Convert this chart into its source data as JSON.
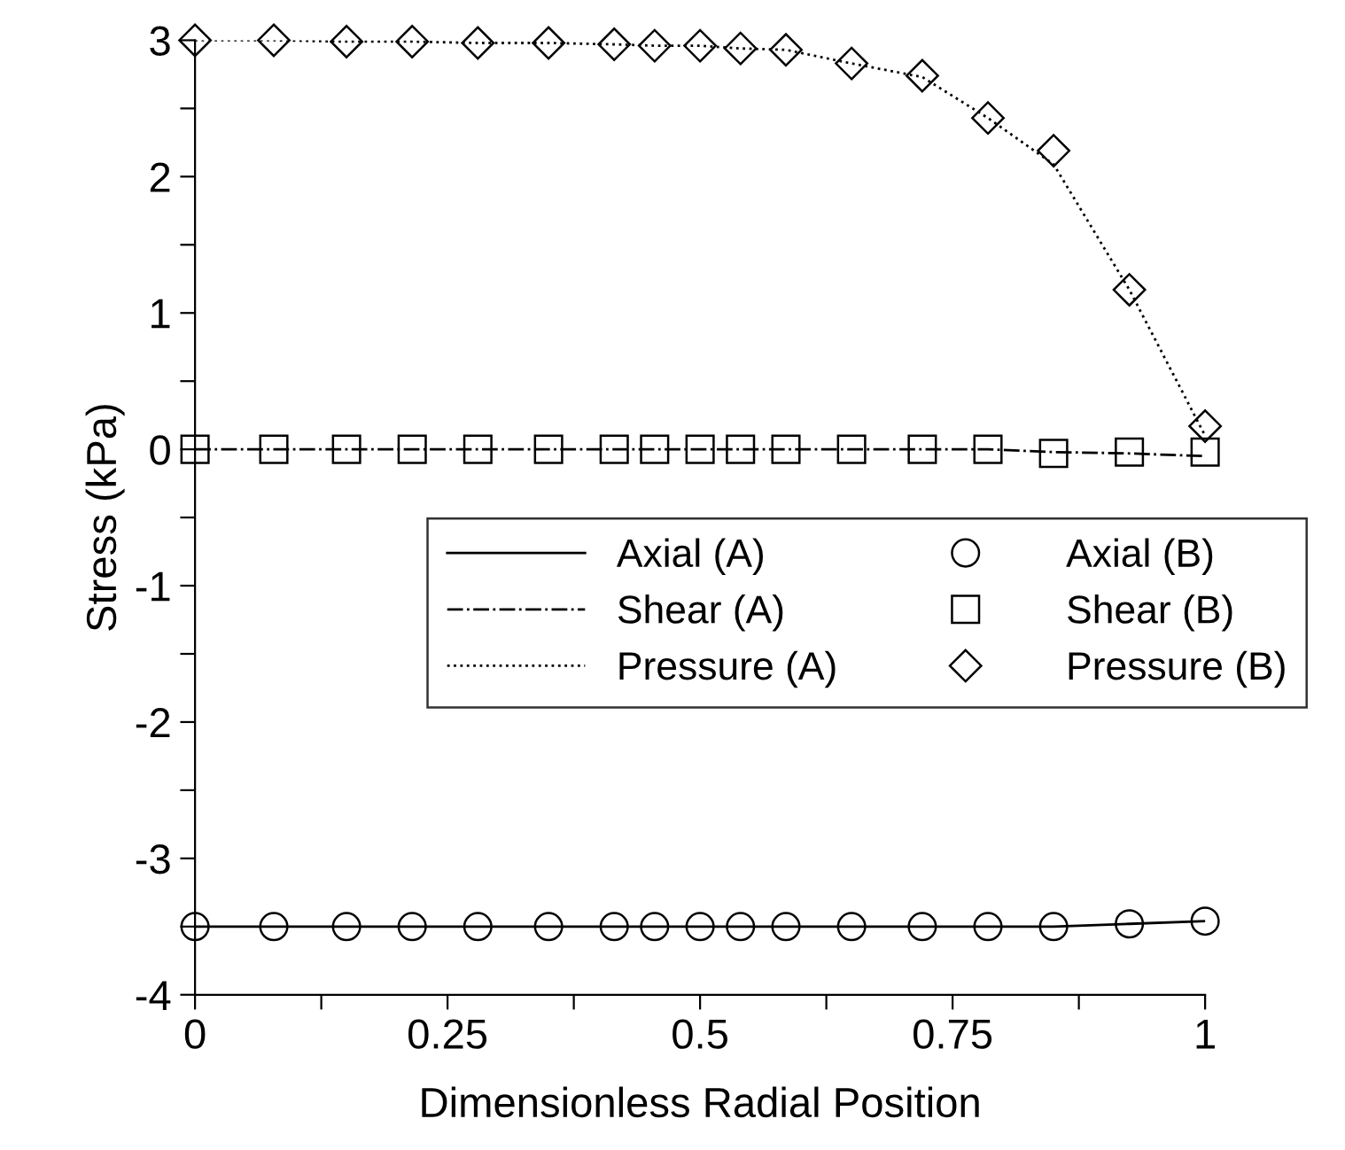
{
  "chart_data": {
    "type": "line",
    "xlabel": "Dimensionless Radial Position",
    "ylabel": "Stress (kPa)",
    "x": [
      0,
      0.078,
      0.15,
      0.215,
      0.28,
      0.35,
      0.415,
      0.455,
      0.5,
      0.54,
      0.585,
      0.65,
      0.72,
      0.785,
      0.85,
      0.925,
      1
    ],
    "series": [
      {
        "name": "Axial (A)",
        "color": "#000000",
        "line_style": "solid",
        "marker": "none",
        "values": [
          -3.5,
          -3.5,
          -3.5,
          -3.5,
          -3.5,
          -3.5,
          -3.5,
          -3.5,
          -3.5,
          -3.5,
          -3.5,
          -3.5,
          -3.5,
          -3.5,
          -3.5,
          -3.48,
          -3.46
        ]
      },
      {
        "name": "Shear (A)",
        "color": "#000000",
        "line_style": "dashdot",
        "marker": "none",
        "values": [
          0,
          0,
          0,
          0,
          0,
          0,
          0,
          0,
          0,
          0,
          0,
          0,
          0,
          0,
          -0.02,
          -0.03,
          -0.05
        ]
      },
      {
        "name": "Pressure (A)",
        "color": "#000000",
        "line_style": "dotted",
        "marker": "none",
        "values": [
          3.0,
          3.0,
          2.99,
          2.99,
          2.98,
          2.98,
          2.97,
          2.96,
          2.96,
          2.94,
          2.93,
          2.83,
          2.73,
          2.43,
          2.09,
          1.17,
          0.1
        ]
      },
      {
        "name": "Axial (B)",
        "color": "#000000",
        "type": "scatter",
        "marker": "circle",
        "values": [
          -3.5,
          -3.5,
          -3.5,
          -3.5,
          -3.5,
          -3.5,
          -3.5,
          -3.5,
          -3.5,
          -3.5,
          -3.5,
          -3.5,
          -3.5,
          -3.5,
          -3.5,
          -3.48,
          -3.46
        ]
      },
      {
        "name": "Shear (B)",
        "color": "#000000",
        "type": "scatter",
        "marker": "square",
        "values": [
          0,
          0,
          0,
          0,
          0,
          0,
          0,
          0,
          0,
          0,
          0,
          0,
          0,
          0,
          -0.03,
          -0.02,
          -0.02
        ]
      },
      {
        "name": "Pressure (B)",
        "color": "#000000",
        "type": "scatter",
        "marker": "diamond",
        "values": [
          3.0,
          3.0,
          2.99,
          2.99,
          2.98,
          2.98,
          2.97,
          2.96,
          2.96,
          2.94,
          2.93,
          2.83,
          2.74,
          2.43,
          2.19,
          1.17,
          0.17
        ]
      }
    ],
    "xlim": [
      0,
      1
    ],
    "ylim": [
      -4,
      3
    ],
    "xticks": [
      0,
      {
        "value": 0.125,
        "label": null
      },
      0.25,
      {
        "value": 0.375,
        "label": null
      },
      0.5,
      {
        "value": 0.625,
        "label": null
      },
      0.75,
      {
        "value": 0.875,
        "label": null
      },
      1
    ],
    "yticks": [
      -4,
      {
        "value": -3.5,
        "label": null
      },
      -3,
      {
        "value": -2.5,
        "label": null
      },
      -2,
      {
        "value": -1.5,
        "label": null
      },
      -1,
      {
        "value": -0.5,
        "label": null
      },
      0,
      {
        "value": 0.5,
        "label": null
      },
      1,
      {
        "value": 1.5,
        "label": null
      },
      2,
      {
        "value": 2.5,
        "label": null
      },
      3
    ],
    "grid": false,
    "legend": "center right"
  }
}
